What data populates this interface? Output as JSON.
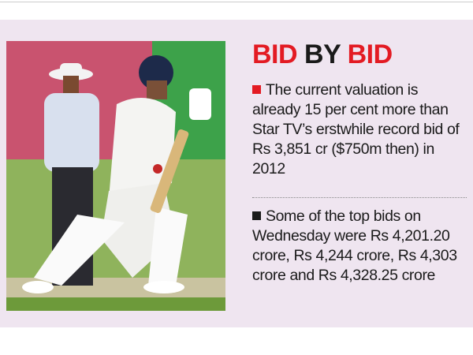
{
  "header": {
    "title": [
      "BID",
      "BY",
      "BID"
    ]
  },
  "bullets": [
    "The current valuation is already 15 per cent more than Star TV’s erstwhile record bid of Rs 3,851 cr ($750m then) in 2012",
    "Some of the top bids on Wednesday were Rs 4,201.20 crore, Rs 4,244 crore, Rs 4,303 crore and Rs 4,328.25 crore"
  ]
}
